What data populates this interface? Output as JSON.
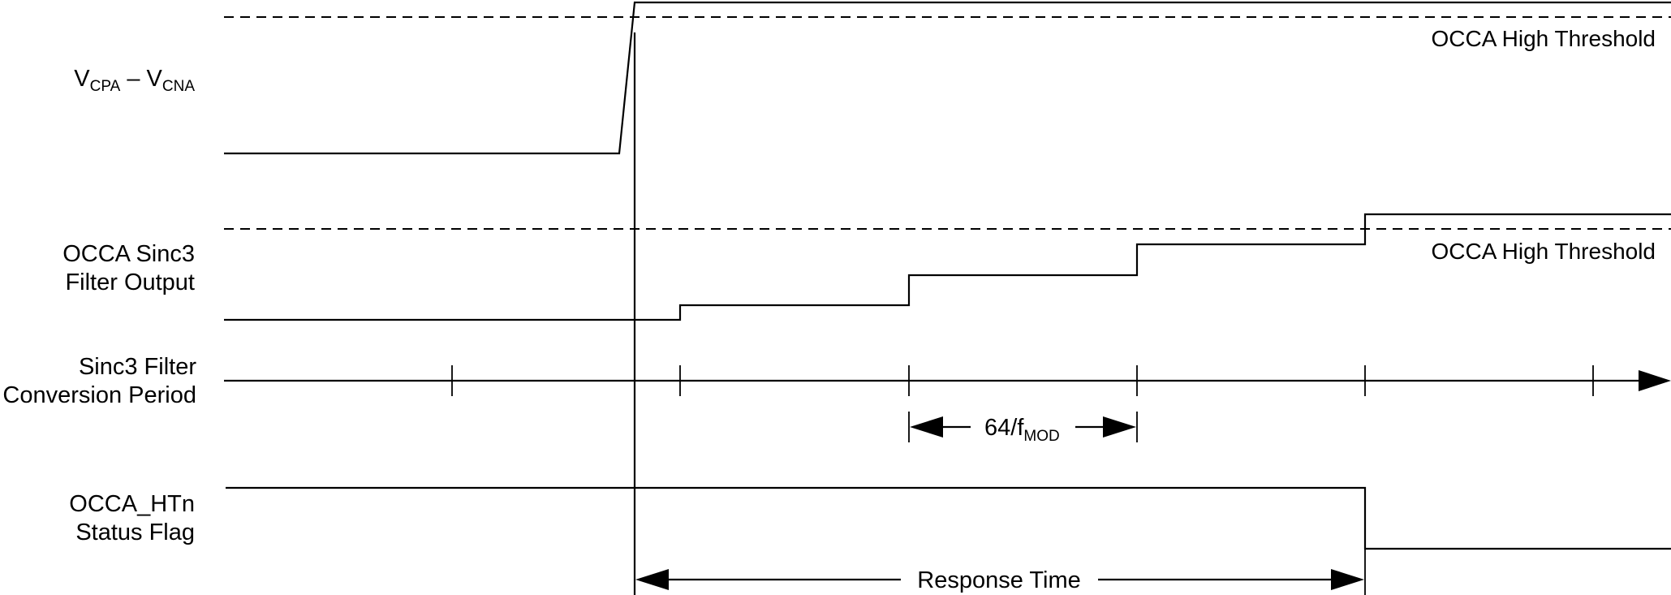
{
  "signals": {
    "vdiff": {
      "v1": "V",
      "s1": "CPA",
      "dash": " – ",
      "v2": "V",
      "s2": "CNA"
    },
    "sinc3_output": {
      "line1": "OCCA Sinc3",
      "line2": "Filter Output"
    },
    "conversion_period": {
      "line1": "Sinc3 Filter",
      "line2": "Conversion Period"
    },
    "status_flag": {
      "line1": "OCCA_HTn",
      "line2": "Status Flag"
    }
  },
  "thresholds": {
    "upper": "OCCA High Threshold",
    "lower": "OCCA High Threshold"
  },
  "annotations": {
    "period": {
      "main": "64/f",
      "sub": "MOD"
    },
    "response_time": "Response Time"
  },
  "colors": {
    "ink": "#000000",
    "background": "#ffffff"
  }
}
